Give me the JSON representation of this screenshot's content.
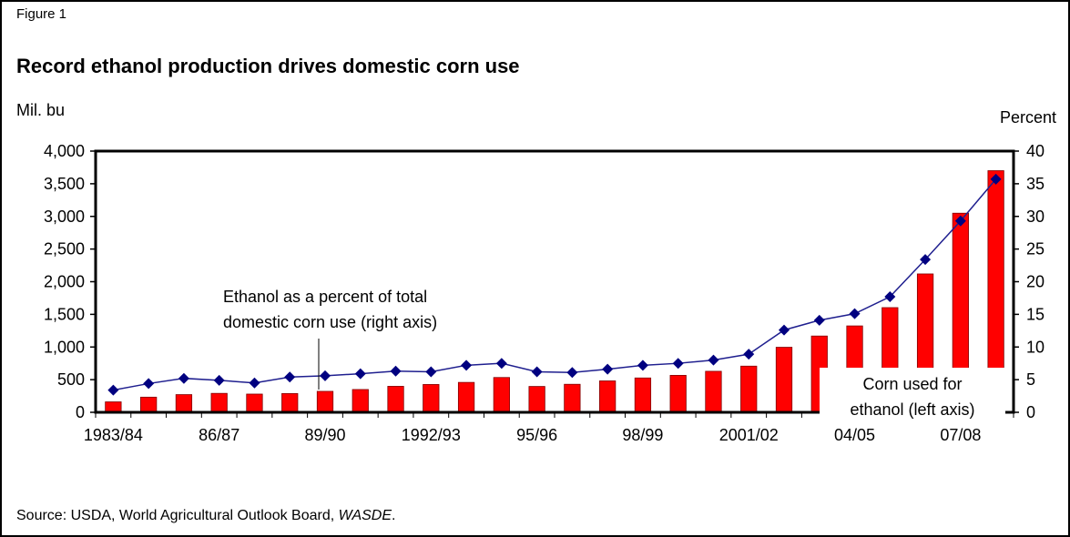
{
  "chart_data": {
    "type": "bar_line",
    "figure_label": "Figure 1",
    "title": "Record ethanol production drives domestic corn use",
    "y_label": "Mil. bu",
    "y2_label": "Percent",
    "categories": [
      "1983/84",
      null,
      null,
      "86/87",
      null,
      null,
      "89/90",
      null,
      null,
      "1992/93",
      null,
      null,
      "95/96",
      null,
      null,
      "98/99",
      null,
      null,
      "2001/02",
      null,
      null,
      "04/05",
      null,
      null,
      "07/08",
      null
    ],
    "series": [
      {
        "name": "Corn used for ethanol (left axis)",
        "type": "bar",
        "color": "#ff0000",
        "axis": "y",
        "values": [
          160,
          232,
          271,
          290,
          279,
          287,
          321,
          349,
          398,
          426,
          458,
          533,
          396,
          429,
          481,
          526,
          566,
          628,
          707,
          996,
          1168,
          1323,
          1603,
          2119,
          3049,
          3700
        ]
      },
      {
        "name": "Ethanol as a percent of total domestic corn use (right axis)",
        "type": "line",
        "color": "#1f1f8f",
        "marker_color": "#000080",
        "axis": "y2",
        "values": [
          3.4,
          4.4,
          5.2,
          4.9,
          4.5,
          5.4,
          5.6,
          5.9,
          6.3,
          6.2,
          7.2,
          7.5,
          6.2,
          6.1,
          6.6,
          7.2,
          7.5,
          8.0,
          8.9,
          12.6,
          14.1,
          15.1,
          17.7,
          23.4,
          29.3,
          35.7
        ]
      }
    ],
    "annotations": [
      {
        "lines": [
          "Ethanol as a percent of total",
          "domestic corn use (right axis)"
        ]
      },
      {
        "lines": [
          "Corn used for",
          "ethanol (left axis)"
        ]
      }
    ],
    "ylim": [
      0,
      4000
    ],
    "yticks": [
      0,
      500,
      {
        "value": 1000,
        "label": "1,000"
      },
      {
        "value": 1500,
        "label": "1,500"
      },
      {
        "value": 2000,
        "label": "2,000"
      },
      {
        "value": 2500,
        "label": "2,500"
      },
      {
        "value": 3000,
        "label": "3,000"
      },
      {
        "value": 3500,
        "label": "3,500"
      },
      {
        "value": 4000,
        "label": "4,000"
      }
    ],
    "y2lim": [
      0,
      40
    ],
    "y2ticks": [
      0,
      5,
      10,
      15,
      20,
      25,
      30,
      35,
      40
    ],
    "source": [
      "Source: USDA, World Agricultural Outlook Board, ",
      "WASDE",
      "."
    ]
  }
}
